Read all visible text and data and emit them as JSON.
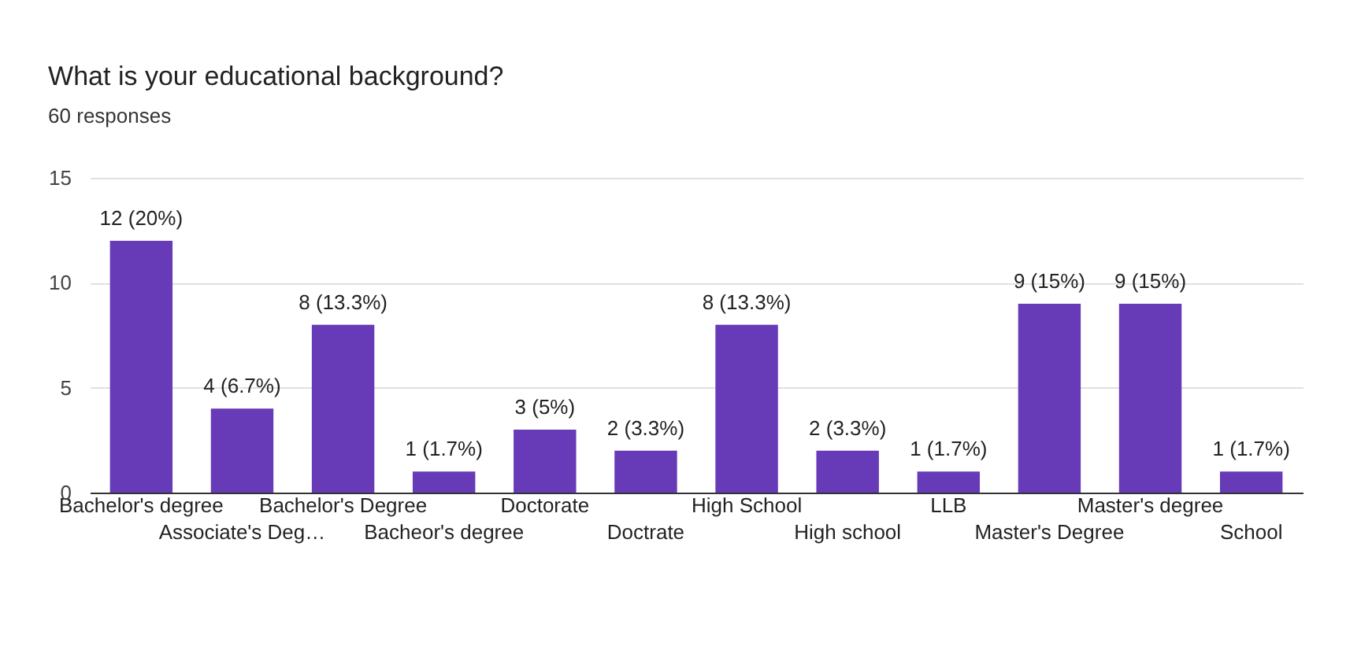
{
  "chart_data": {
    "type": "bar",
    "title": "What is your educational background?",
    "subtitle": "60 responses",
    "categories": [
      "Bachelor's degree",
      "Associate's Deg…",
      "Bachelor's Degree",
      "Bacheor's degree",
      "Doctorate",
      "Doctrate",
      "High School",
      "High school",
      "LLB",
      "Master's Degree",
      "Master's degree",
      "School"
    ],
    "values": [
      12,
      4,
      8,
      1,
      3,
      2,
      8,
      2,
      1,
      9,
      9,
      1
    ],
    "value_labels": [
      "12 (20%)",
      "4 (6.7%)",
      "8 (13.3%)",
      "1 (1.7%)",
      "3 (5%)",
      "2 (3.3%)",
      "8 (13.3%)",
      "2 (3.3%)",
      "1 (1.7%)",
      "9 (15%)",
      "9 (15%)",
      "1 (1.7%)"
    ],
    "color": "#673ab7",
    "ylim": [
      0,
      15
    ],
    "yticks": [
      0,
      5,
      10,
      15
    ],
    "grid": "y"
  }
}
